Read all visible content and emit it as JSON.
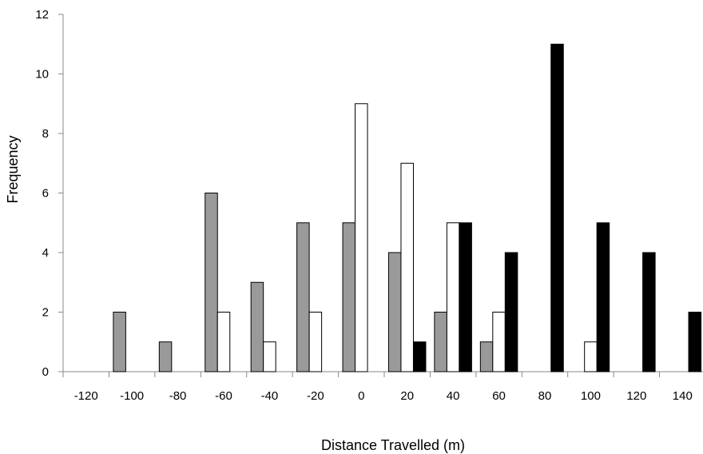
{
  "chart_data": {
    "type": "bar",
    "xlabel": "Distance Travelled (m)",
    "ylabel": "Frequency",
    "ylim": [
      0,
      12
    ],
    "yticks": [
      0,
      2,
      4,
      6,
      8,
      10,
      12
    ],
    "grid": false,
    "legend": "none",
    "categories": [
      "-120",
      "-100",
      "-80",
      "-60",
      "-40",
      "-20",
      "0",
      "20",
      "40",
      "60",
      "80",
      "100",
      "120",
      "140"
    ],
    "series": [
      {
        "color": "#9a9a9a",
        "values": [
          0,
          2,
          1,
          6,
          3,
          5,
          5,
          4,
          2,
          1,
          0,
          0,
          0,
          0
        ]
      },
      {
        "color": "#ffffff",
        "values": [
          0,
          0,
          0,
          2,
          1,
          2,
          9,
          7,
          5,
          2,
          0,
          1,
          0,
          0
        ]
      },
      {
        "color": "#000000",
        "values": [
          0,
          0,
          0,
          0,
          0,
          0,
          0,
          1,
          5,
          4,
          11,
          5,
          4,
          2
        ]
      }
    ]
  }
}
